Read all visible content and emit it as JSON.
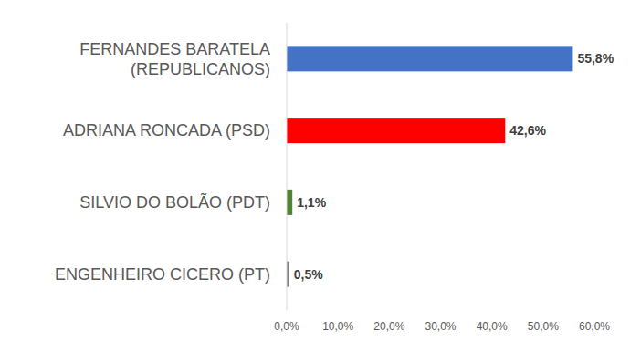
{
  "chart_data": {
    "type": "bar",
    "orientation": "horizontal",
    "categories": [
      "FERNANDES BARATELA (REPUBLICANOS)",
      "ADRIANA RONCADA (PSD)",
      "SILVIO DO BOLÃO (PDT)",
      "ENGENHEIRO CICERO (PT)"
    ],
    "values": [
      55.8,
      42.6,
      1.1,
      0.5
    ],
    "value_labels": [
      "55,8%",
      "42,6%",
      "1,1%",
      "0,5%"
    ],
    "colors": [
      "#4472c4",
      "#ff0000",
      "#548235",
      "#7f7f7f"
    ],
    "xlim": [
      0,
      60
    ],
    "xticks": [
      {
        "value": 0,
        "label": "0,0%"
      },
      {
        "value": 10,
        "label": "10,0%"
      },
      {
        "value": 20,
        "label": "20,0%"
      },
      {
        "value": 30,
        "label": "30,0%"
      },
      {
        "value": 40,
        "label": "40,0%"
      },
      {
        "value": 50,
        "label": "50,0%"
      },
      {
        "value": 60,
        "label": "60,0%"
      }
    ],
    "grid": false,
    "data_labels": true
  }
}
